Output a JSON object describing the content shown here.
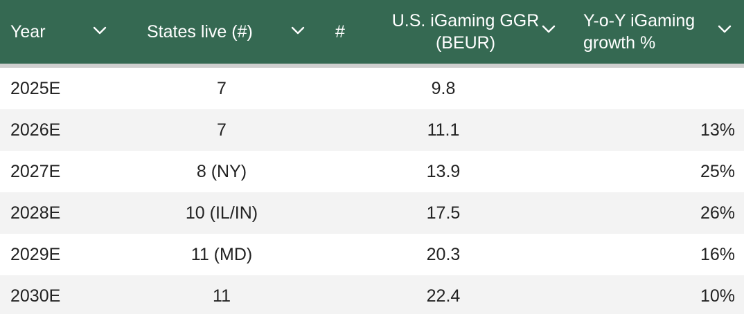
{
  "header": {
    "year": "Year",
    "states": "States live (#)",
    "hash": "#",
    "ggr_line1": "U.S. iGaming GGR",
    "ggr_line2": "(BEUR)",
    "growth_line1": "Y-o-Y iGaming",
    "growth_line2": "growth %"
  },
  "colors": {
    "header_bg": "#356952",
    "header_text": "#ffffff",
    "row_alt_bg": "#f3f3f3",
    "text": "#222222"
  },
  "icons": [
    "chevron-down-icon"
  ],
  "chart_data": {
    "type": "table",
    "columns": [
      "Year",
      "States live (#)",
      "#",
      "U.S. iGaming GGR (BEUR)",
      "Y-o-Y iGaming growth %"
    ],
    "rows": [
      {
        "year": "2025E",
        "states": "7",
        "ggr": "9.8",
        "growth": ""
      },
      {
        "year": "2026E",
        "states": "7",
        "ggr": "11.1",
        "growth": "13%"
      },
      {
        "year": "2027E",
        "states": "8 (NY)",
        "ggr": "13.9",
        "growth": "25%"
      },
      {
        "year": "2028E",
        "states": "10 (IL/IN)",
        "ggr": "17.5",
        "growth": "26%"
      },
      {
        "year": "2029E",
        "states": "11 (MD)",
        "ggr": "20.3",
        "growth": "16%"
      },
      {
        "year": "2030E",
        "states": "11",
        "ggr": "22.4",
        "growth": "10%"
      }
    ]
  }
}
